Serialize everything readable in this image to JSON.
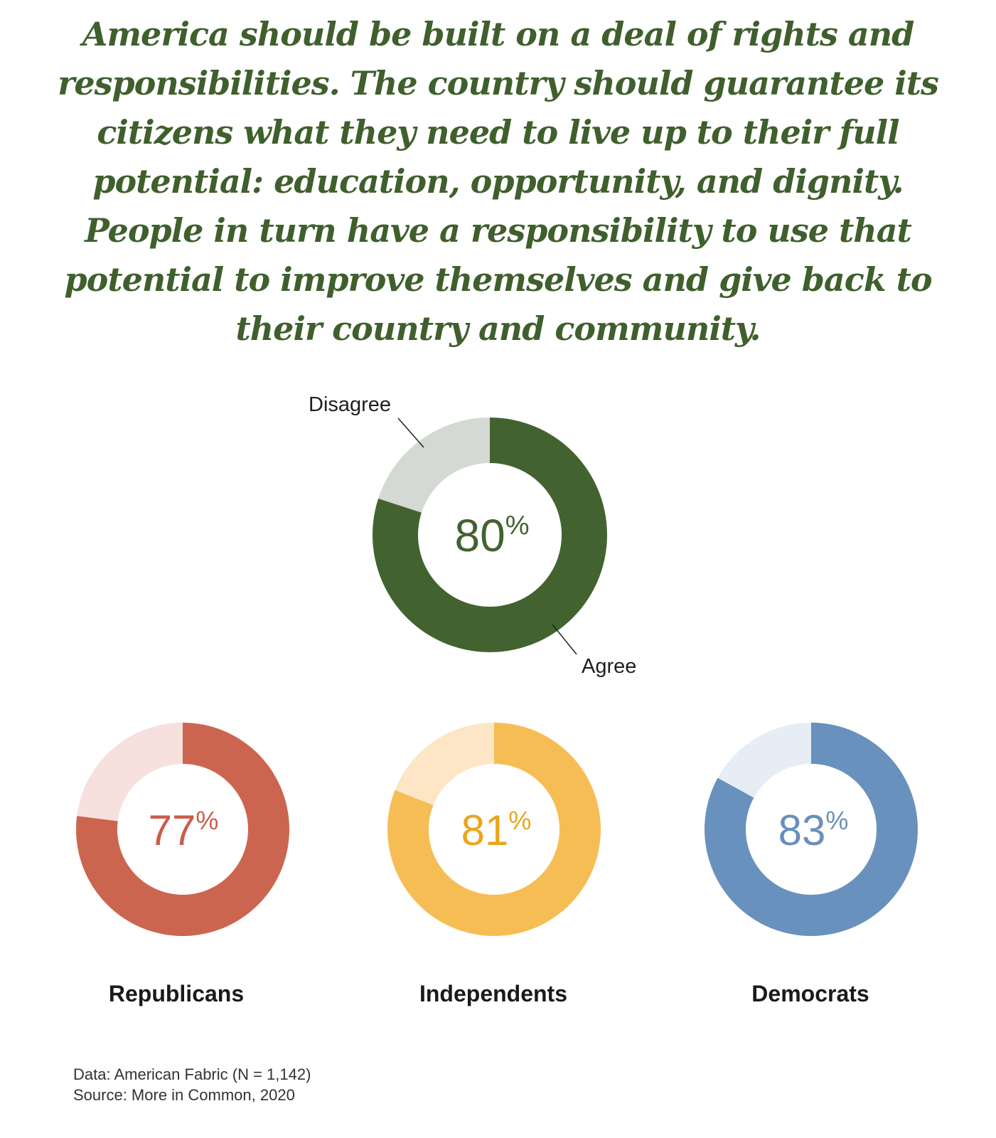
{
  "headline": "America should be built on a deal of rights and responsibilities. The country should guarantee its citizens what they need to live up to their full potential: education, opportunity, and dignity. People in turn have a responsibility to use that potential to improve themselves and give back to their country and community.",
  "chart_data": [
    {
      "type": "pie",
      "variant": "donut",
      "center_label": "80",
      "center_unit": "%",
      "slices": [
        {
          "label": "Agree",
          "value": 80
        },
        {
          "label": "Disagree",
          "value": 20
        }
      ],
      "colors": {
        "primary": "#42632f",
        "secondary": "#d4d9d3",
        "text": "#42632f"
      }
    },
    {
      "type": "pie",
      "variant": "donut",
      "group": "Republicans",
      "center_label": "77",
      "center_unit": "%",
      "values": [
        77,
        23
      ],
      "colors": {
        "primary": "#cc6550",
        "secondary": "#f6e1de",
        "text": "#c95d4a"
      }
    },
    {
      "type": "pie",
      "variant": "donut",
      "group": "Independents",
      "center_label": "81",
      "center_unit": "%",
      "values": [
        81,
        19
      ],
      "colors": {
        "primary": "#f7bd55",
        "secondary": "#fde6c5",
        "text": "#eaa51c"
      }
    },
    {
      "type": "pie",
      "variant": "donut",
      "group": "Democrats",
      "center_label": "83",
      "center_unit": "%",
      "values": [
        83,
        17
      ],
      "colors": {
        "primary": "#6991bd",
        "secondary": "#e7edf4",
        "text": "#6a8fbb"
      }
    }
  ],
  "source": {
    "line1": "Data: American Fabric (N = 1,142)",
    "line2": "Source: More in Common, 2020"
  }
}
